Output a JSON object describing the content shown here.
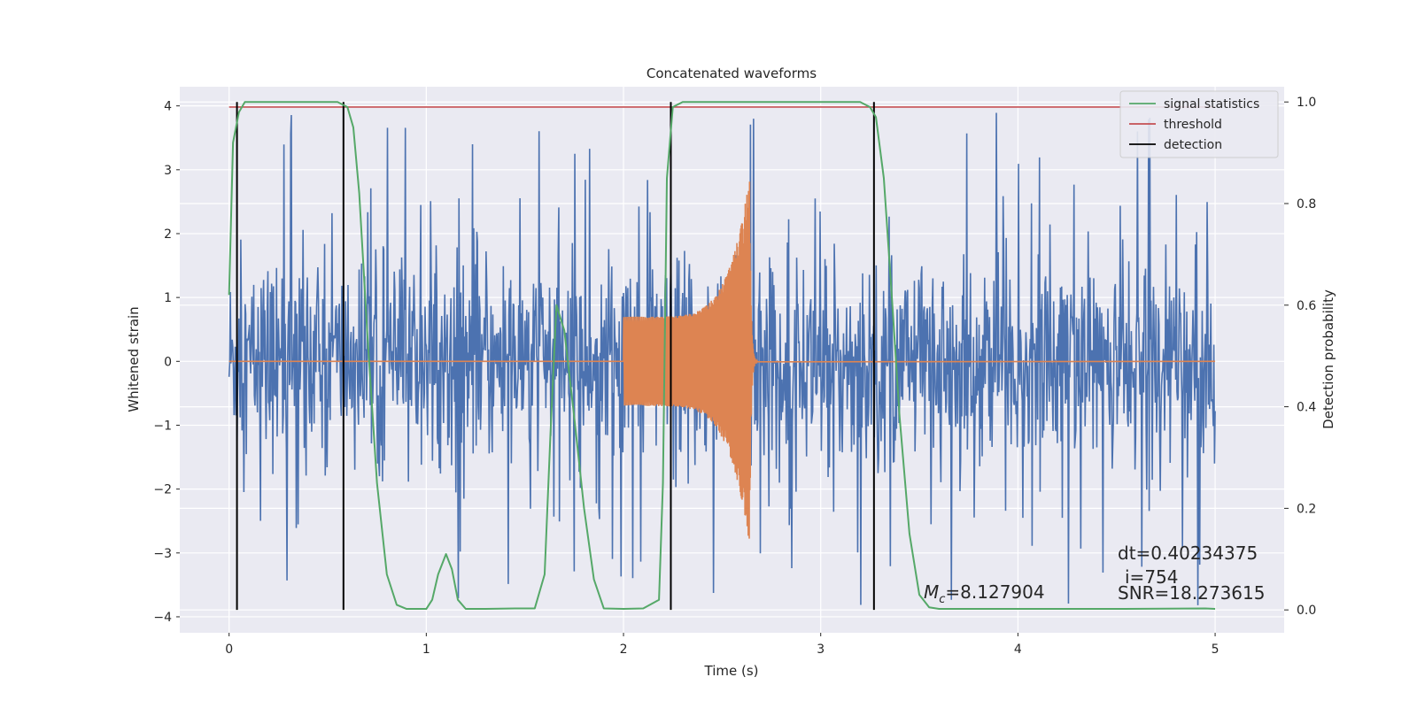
{
  "chart_data": {
    "type": "line",
    "title": "Concatenated waveforms",
    "xlabel": "Time (s)",
    "ylabel": "Whitened strain",
    "y2label": "Detection probability",
    "xlim": [
      -0.25,
      5.35
    ],
    "ylim": [
      -4.25,
      4.3
    ],
    "y2lim": [
      -0.045,
      1.03
    ],
    "xticks": [
      0,
      1,
      2,
      3,
      4,
      5
    ],
    "yticks": [
      -4,
      -3,
      -2,
      -1,
      0,
      1,
      2,
      3,
      4
    ],
    "y2ticks": [
      0.0,
      0.2,
      0.4,
      0.6,
      0.8,
      1.0
    ],
    "xtick_labels": [
      "0",
      "1",
      "2",
      "3",
      "4",
      "5"
    ],
    "ytick_labels": [
      "−4",
      "−3",
      "−2",
      "−1",
      "0",
      "1",
      "2",
      "3",
      "4"
    ],
    "y2tick_labels": [
      "0.0",
      "0.2",
      "0.4",
      "0.6",
      "0.8",
      "1.0"
    ],
    "grid": true,
    "legend_position": "top-right",
    "colors": {
      "strain": "#4c72b0",
      "template": "#dd8452",
      "signal_statistics": "#55a868",
      "threshold": "#c44e52",
      "detection": "#000000",
      "background": "#eaeaf2",
      "grid": "#ffffff"
    },
    "strain_envelope": {
      "x_range": [
        0,
        5
      ],
      "typical_amplitude": 2.0,
      "peak_amplitude": 3.9,
      "min_value": -3.9
    },
    "template_chirp": {
      "start": 2.0,
      "merger": 2.64,
      "end": 2.68,
      "start_amplitude": 0.7,
      "peak_amplitude": 2.9,
      "peak_min": -2.85
    },
    "series": [
      {
        "name": "signal statistics",
        "axis": "right",
        "x": [
          0.0,
          0.02,
          0.05,
          0.08,
          0.12,
          0.2,
          0.4,
          0.55,
          0.6,
          0.63,
          0.66,
          0.7,
          0.75,
          0.8,
          0.85,
          0.9,
          1.0,
          1.03,
          1.06,
          1.1,
          1.13,
          1.16,
          1.2,
          1.3,
          1.45,
          1.55,
          1.6,
          1.63,
          1.66,
          1.7,
          1.75,
          1.8,
          1.85,
          1.9,
          2.0,
          2.1,
          2.18,
          2.2,
          2.22,
          2.25,
          2.3,
          2.5,
          3.0,
          3.2,
          3.25,
          3.28,
          3.32,
          3.36,
          3.4,
          3.45,
          3.5,
          3.55,
          3.6,
          3.8,
          4.5,
          4.95,
          5.0
        ],
        "y": [
          0.62,
          0.92,
          0.98,
          1.0,
          1.0,
          1.0,
          1.0,
          1.0,
          0.99,
          0.95,
          0.82,
          0.55,
          0.25,
          0.07,
          0.01,
          0.002,
          0.002,
          0.02,
          0.07,
          0.11,
          0.08,
          0.02,
          0.002,
          0.002,
          0.003,
          0.003,
          0.07,
          0.35,
          0.6,
          0.55,
          0.38,
          0.2,
          0.06,
          0.003,
          0.002,
          0.003,
          0.02,
          0.25,
          0.85,
          0.99,
          1.0,
          1.0,
          1.0,
          1.0,
          0.99,
          0.97,
          0.85,
          0.62,
          0.38,
          0.15,
          0.03,
          0.005,
          0.002,
          0.002,
          0.002,
          0.003,
          0.002
        ]
      },
      {
        "name": "threshold",
        "axis": "right",
        "x": [
          0.0,
          5.0
        ],
        "y": [
          0.99,
          0.99
        ]
      },
      {
        "name": "detection",
        "axis": "right",
        "x": [
          0.04,
          0.58,
          2.24,
          3.27
        ],
        "y_range": [
          0.0,
          1.0
        ]
      }
    ],
    "annotations": {
      "mc_symbol": "M",
      "mc_sub": "c",
      "mc_value": "=8.127904",
      "dt": "dt=0.40234375",
      "i": "i=754",
      "snr": "SNR=18.273615"
    }
  }
}
